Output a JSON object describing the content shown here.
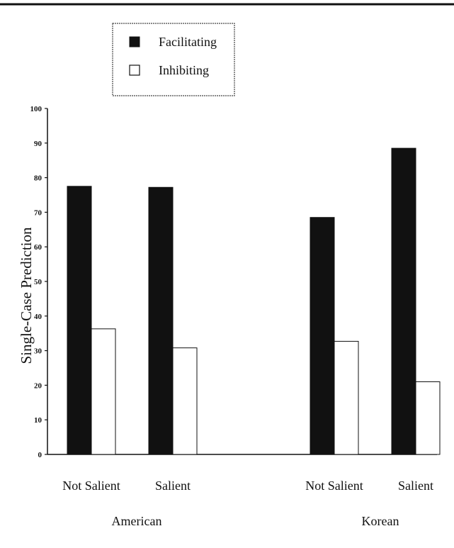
{
  "chart_data": {
    "type": "bar",
    "title": "",
    "xlabel": "",
    "ylabel": "Single-Case Prediction",
    "ylim": [
      0,
      100
    ],
    "yticks": [
      0,
      10,
      20,
      30,
      40,
      50,
      60,
      70,
      80,
      90,
      100
    ],
    "grid": false,
    "legend_position": "top-left",
    "groups": [
      {
        "label": "American",
        "categories": [
          "Not Salient",
          "Salient"
        ]
      },
      {
        "label": "Korean",
        "categories": [
          "Not Salient",
          "Salient"
        ]
      }
    ],
    "categories": [
      "Not Salient",
      "Salient",
      "Not Salient",
      "Salient"
    ],
    "series": [
      {
        "name": "Facilitating",
        "color": "#111111",
        "values": [
          77.5,
          77.2,
          68.5,
          88.5
        ]
      },
      {
        "name": "Inhibiting",
        "color": "#ffffff",
        "values": [
          36.3,
          30.8,
          32.7,
          21.0
        ]
      }
    ]
  }
}
